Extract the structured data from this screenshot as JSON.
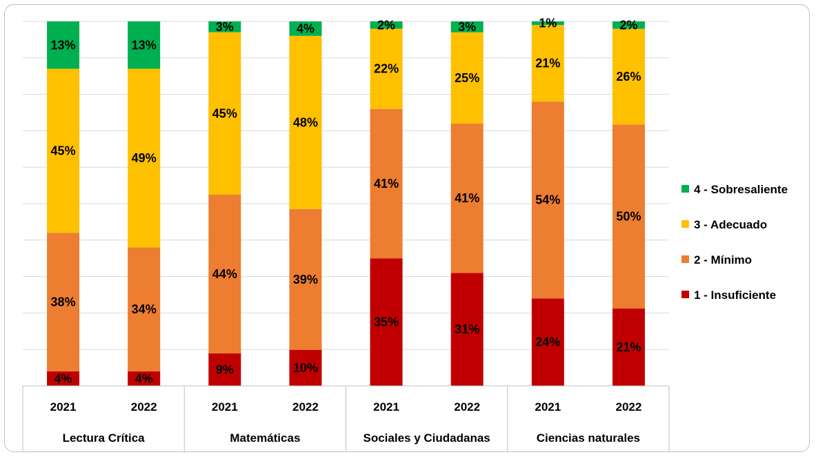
{
  "chart_data": {
    "type": "bar",
    "stacked": true,
    "percent_stacked": true,
    "groups": [
      {
        "name": "Lectura Crítica",
        "years": [
          "2021",
          "2022"
        ]
      },
      {
        "name": "Matemáticas",
        "years": [
          "2021",
          "2022"
        ]
      },
      {
        "name": "Sociales y Ciudadanas",
        "years": [
          "2021",
          "2022"
        ]
      },
      {
        "name": "Ciencias naturales",
        "years": [
          "2021",
          "2022"
        ]
      }
    ],
    "series": [
      {
        "name": "1 - Insuficiente",
        "color": "#c00000",
        "values": [
          4,
          4,
          9,
          10,
          35,
          31,
          24,
          21
        ]
      },
      {
        "name": "2 - Mínimo",
        "color": "#ed7d31",
        "values": [
          38,
          34,
          44,
          39,
          41,
          41,
          54,
          50
        ]
      },
      {
        "name": "3 - Adecuado",
        "color": "#ffc000",
        "values": [
          45,
          49,
          45,
          48,
          22,
          25,
          21,
          26
        ]
      },
      {
        "name": "4 - Sobresaliente",
        "color": "#00b050",
        "values": [
          13,
          13,
          3,
          4,
          2,
          3,
          1,
          2
        ]
      }
    ],
    "value_suffix": "%",
    "legend_position": "right",
    "grid": true,
    "ylim": [
      0,
      100
    ]
  }
}
